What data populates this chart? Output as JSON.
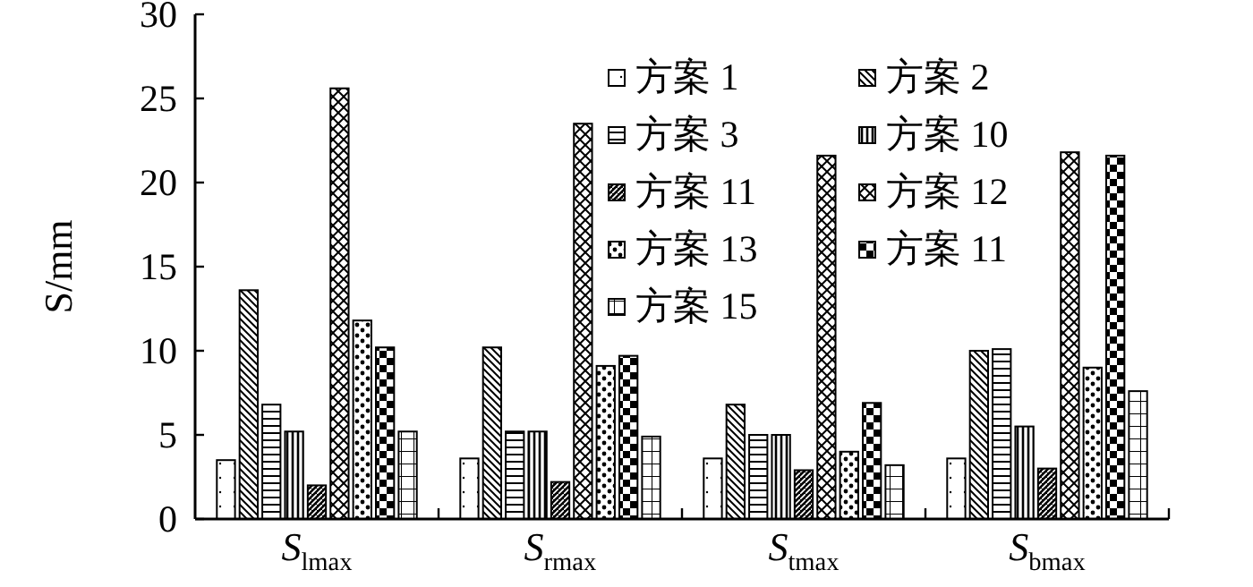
{
  "chart_data": {
    "type": "bar",
    "ylabel": "S/mm",
    "categories": [
      "S$_{lmax}$",
      "S$_{rmax}$",
      "S$_{tmax}$",
      "S$_{bmax}$"
    ],
    "series": [
      {
        "name": "方案 1",
        "color": "#000000",
        "values": [
          3.5,
          3.6,
          3.6,
          3.6
        ]
      },
      {
        "name": "方案 2",
        "color": "#000000",
        "values": [
          13.6,
          10.2,
          6.8,
          10.0
        ]
      },
      {
        "name": "方案 3",
        "color": "#000000",
        "values": [
          6.8,
          5.2,
          5.0,
          10.1
        ]
      },
      {
        "name": "方案 10",
        "color": "#000000",
        "values": [
          5.2,
          5.2,
          5.0,
          5.5
        ]
      },
      {
        "name": "方案 11",
        "color": "#000000",
        "values": [
          2.0,
          2.2,
          2.9,
          3.0
        ]
      },
      {
        "name": "方案 12",
        "color": "#000000",
        "values": [
          25.6,
          23.5,
          21.6,
          21.8
        ]
      },
      {
        "name": "方案 13",
        "color": "#000000",
        "values": [
          11.8,
          9.1,
          4.0,
          9.0
        ]
      },
      {
        "name": "方案 11",
        "color": "#000000",
        "values": [
          10.2,
          9.7,
          6.9,
          21.6
        ]
      },
      {
        "name": "方案 15",
        "color": "#000000",
        "values": [
          5.2,
          4.9,
          3.2,
          7.6
        ]
      }
    ],
    "ylim": [
      0,
      30
    ],
    "yticks": [
      0,
      5,
      10,
      15,
      20,
      25,
      30
    ],
    "legend": "top right",
    "grid": false
  }
}
